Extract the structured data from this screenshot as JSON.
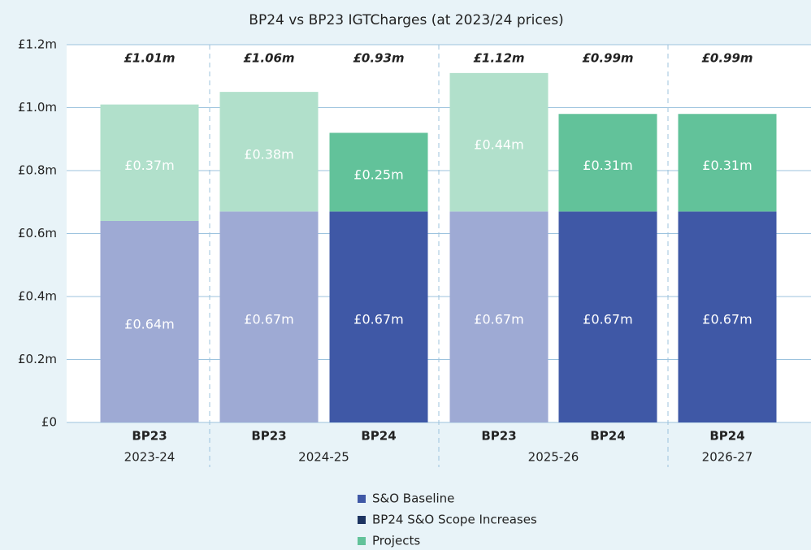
{
  "chart_data": {
    "type": "stacked_bar",
    "title": "BP24 vs BP23 IGTCharges (at 2023/24 prices)",
    "categories": [
      "BP23",
      "BP23",
      "BP24",
      "BP23",
      "BP24",
      "BP24"
    ],
    "groups": [
      "2023-24",
      "2024-25",
      "2025-26",
      "2026-27"
    ],
    "total_labels": [
      "£1.01m",
      "£1.06m",
      "£0.93m",
      "£1.12m",
      "£0.99m",
      "£0.99m"
    ],
    "series": [
      {
        "name": "S&O Baseline",
        "color": "#3f58a6",
        "bar_colors": [
          "#9eaad4",
          "#9eaad4",
          "#3f58a6",
          "#9eaad4",
          "#3f58a6",
          "#3f58a6"
        ],
        "values": [
          0.64,
          0.67,
          0.67,
          0.67,
          0.67,
          0.67
        ],
        "value_labels": [
          "£0.64m",
          "£0.67m",
          "£0.67m",
          "£0.67m",
          "£0.67m",
          "£0.67m"
        ]
      },
      {
        "name": "BP24 S&O Scope Increases",
        "color": "#1d3461",
        "values": [
          null,
          null,
          null,
          null,
          null,
          null
        ]
      },
      {
        "name": "Projects",
        "color": "#62c29a",
        "bar_colors": [
          "#b1e0cb",
          "#b1e0cb",
          "#62c29a",
          "#b1e0cb",
          "#62c29a",
          "#62c29a"
        ],
        "values": [
          0.37,
          0.38,
          0.25,
          0.44,
          0.31,
          0.31
        ],
        "value_labels": [
          "£0.37m",
          "£0.38m",
          "£0.25m",
          "£0.44m",
          "£0.31m",
          "£0.31m"
        ]
      }
    ],
    "ylim": [
      0,
      1.2
    ],
    "yticks": [
      {
        "value": 0,
        "label": "£0"
      },
      {
        "value": 0.2,
        "label": "£0.2m"
      },
      {
        "value": 0.4,
        "label": "£0.4m"
      },
      {
        "value": 0.6,
        "label": "£0.6m"
      },
      {
        "value": 0.8,
        "label": "£0.8m"
      },
      {
        "value": 1.0,
        "label": "£1.0m"
      },
      {
        "value": 1.2,
        "label": "£1.2m"
      }
    ],
    "grid": true
  }
}
